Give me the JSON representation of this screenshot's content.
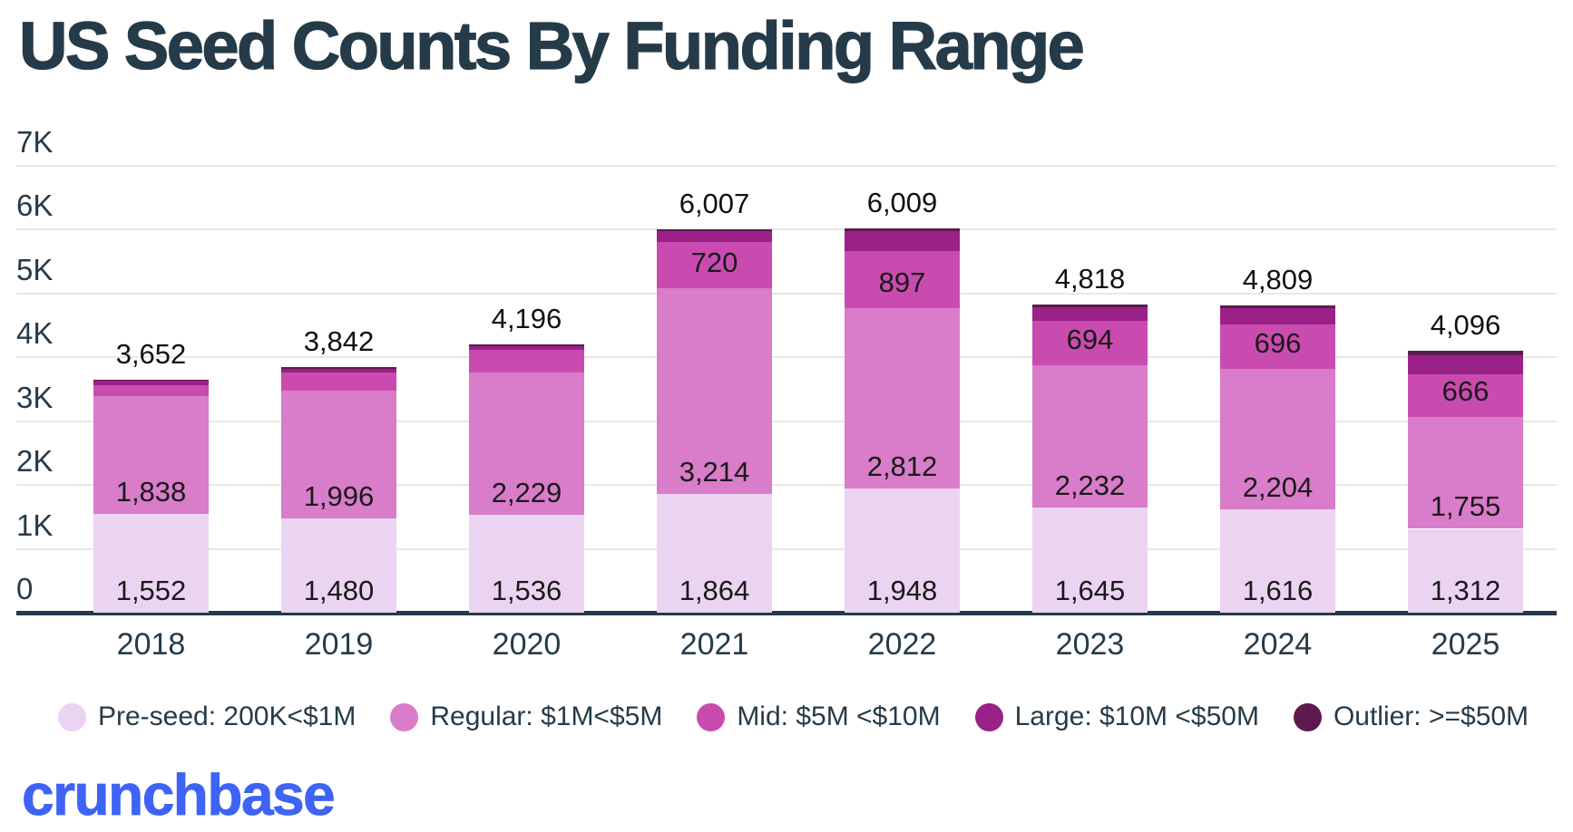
{
  "title": "US Seed Counts By Funding Range",
  "logo_text": "crunchbase",
  "colors": {
    "title_text": "#263B49",
    "axis_text": "#263B49",
    "value_label_text": "#191919",
    "gridline": "#E9E7E8",
    "baseline": "#24394B",
    "background": "#FFFFFF",
    "logo_blue": "#3E63F5"
  },
  "chart_data": {
    "type": "bar",
    "stacked": true,
    "title": "US Seed Counts By Funding Range",
    "categories": [
      "2018",
      "2019",
      "2020",
      "2021",
      "2022",
      "2023",
      "2024",
      "2025"
    ],
    "series": [
      {
        "name": "Pre-seed: 200K<$1M",
        "color": "#EBD4F2",
        "values": [
          1552,
          1480,
          1536,
          1864,
          1948,
          1645,
          1616,
          1312
        ],
        "value_labels_visible": [
          true,
          true,
          true,
          true,
          true,
          true,
          true,
          true
        ],
        "values_estimated": [
          false,
          false,
          false,
          false,
          false,
          false,
          false,
          false
        ]
      },
      {
        "name": "Regular: $1M<$5M",
        "color": "#D97CCA",
        "values": [
          1838,
          1996,
          2229,
          3214,
          2812,
          2232,
          2204,
          1755
        ],
        "value_labels_visible": [
          true,
          true,
          true,
          true,
          true,
          true,
          true,
          true
        ],
        "values_estimated": [
          false,
          false,
          false,
          false,
          false,
          false,
          false,
          false
        ]
      },
      {
        "name": "Mid: $5M <$10M",
        "color": "#CA4BB0",
        "values": [
          165,
          280,
          345,
          720,
          897,
          694,
          696,
          666
        ],
        "value_labels_visible": [
          false,
          false,
          false,
          true,
          true,
          true,
          true,
          true
        ],
        "values_estimated": [
          true,
          true,
          true,
          false,
          false,
          false,
          false,
          false
        ]
      },
      {
        "name": "Large: $10M <$50M",
        "color": "#9A2188",
        "values": [
          72,
          64,
          64,
          180,
          310,
          210,
          250,
          300
        ],
        "value_labels_visible": [
          false,
          false,
          false,
          false,
          false,
          false,
          false,
          false
        ],
        "values_estimated": [
          true,
          true,
          true,
          true,
          true,
          true,
          true,
          true
        ]
      },
      {
        "name": "Outlier: >=$50M",
        "color": "#5C1A4E",
        "values": [
          25,
          22,
          22,
          29,
          42,
          37,
          43,
          63
        ],
        "value_labels_visible": [
          false,
          false,
          false,
          false,
          false,
          false,
          false,
          false
        ],
        "values_estimated": [
          true,
          true,
          true,
          true,
          true,
          true,
          true,
          true
        ]
      }
    ],
    "totals": [
      3652,
      3842,
      4196,
      6007,
      6009,
      4818,
      4809,
      4096
    ],
    "totals_visible": [
      true,
      true,
      true,
      true,
      true,
      true,
      true,
      true
    ],
    "yaxis": {
      "tick_labels": [
        "0",
        "1K",
        "2K",
        "3K",
        "4K",
        "5K",
        "6K",
        "7K"
      ],
      "tick_values": [
        0,
        1000,
        2000,
        3000,
        4000,
        5000,
        6000,
        7000
      ],
      "ylim": [
        0,
        7000
      ],
      "grid": true
    },
    "legend_position": "bottom"
  }
}
